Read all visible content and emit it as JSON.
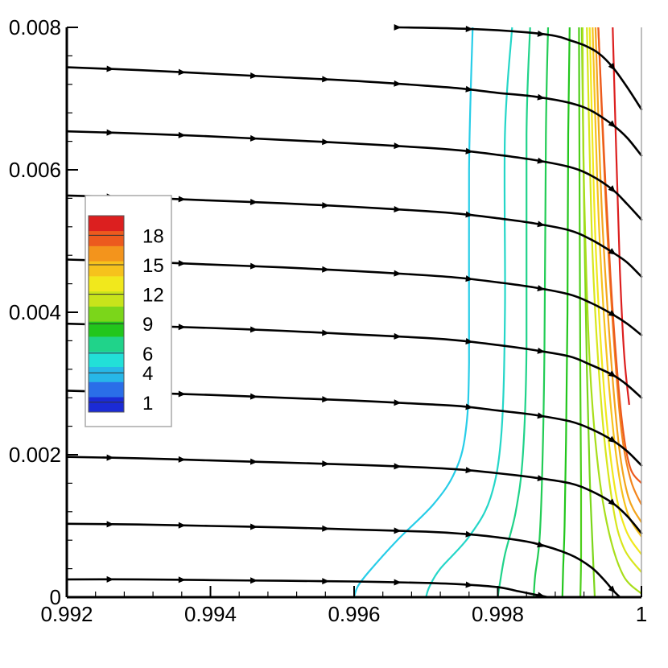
{
  "chart_data": {
    "type": "contour",
    "xlim": [
      0.992,
      1.0
    ],
    "ylim": [
      0,
      0.008
    ],
    "x_ticks": [
      "0.992",
      "0.994",
      "0.996",
      "0.998",
      "1"
    ],
    "y_ticks": [
      "0",
      "0.002",
      "0.004",
      "0.006",
      "0.008"
    ],
    "legend": {
      "placement": "left-middle",
      "labels": [
        "18",
        "15",
        "12",
        "9",
        "6",
        "4",
        "1"
      ],
      "levels": [
        1,
        4,
        6,
        9,
        12,
        15,
        18
      ],
      "range": [
        0,
        20
      ],
      "colors": [
        "#1b2bd6",
        "#2a6ee8",
        "#27b7e8",
        "#22e0d8",
        "#20d38a",
        "#22c61c",
        "#7bd61a",
        "#c8e41b",
        "#f1e81c",
        "#f6c21c",
        "#f3941c",
        "#ec5a1e",
        "#dc1f1f"
      ]
    },
    "streamlines": [
      {
        "x": [
          0.9966,
          0.9972,
          0.9978,
          0.9984,
          0.9988,
          0.999,
          0.9992,
          0.9994,
          0.9996,
          0.9998,
          1.0
        ],
        "y": [
          0.008,
          0.00799,
          0.00797,
          0.00793,
          0.00788,
          0.00782,
          0.00775,
          0.00764,
          0.00744,
          0.00716,
          0.00685
        ]
      },
      {
        "x": [
          0.992,
          0.993,
          0.994,
          0.995,
          0.996,
          0.997,
          0.9975,
          0.998,
          0.9985,
          0.999,
          0.9993,
          0.9996,
          0.9998,
          1.0
        ],
        "y": [
          0.00744,
          0.0074,
          0.00735,
          0.0073,
          0.00725,
          0.00718,
          0.00714,
          0.00708,
          0.00703,
          0.00694,
          0.00683,
          0.00663,
          0.00645,
          0.0062
        ]
      },
      {
        "x": [
          0.992,
          0.993,
          0.994,
          0.995,
          0.996,
          0.997,
          0.9975,
          0.998,
          0.9985,
          0.999,
          0.9993,
          0.9996,
          0.9998,
          1.0
        ],
        "y": [
          0.00654,
          0.00651,
          0.00647,
          0.00642,
          0.00637,
          0.00631,
          0.00627,
          0.00621,
          0.00614,
          0.00604,
          0.00592,
          0.00572,
          0.00552,
          0.0053
        ]
      },
      {
        "x": [
          0.992,
          0.993,
          0.994,
          0.995,
          0.996,
          0.997,
          0.9975,
          0.998,
          0.9985,
          0.999,
          0.9993,
          0.9996,
          0.9998,
          1.0
        ],
        "y": [
          0.00564,
          0.00561,
          0.00557,
          0.00553,
          0.00548,
          0.00542,
          0.00538,
          0.00532,
          0.00525,
          0.00515,
          0.00502,
          0.00484,
          0.0047,
          0.0045
        ]
      },
      {
        "x": [
          0.992,
          0.993,
          0.994,
          0.995,
          0.996,
          0.997,
          0.9975,
          0.998,
          0.9985,
          0.999,
          0.9993,
          0.9996,
          0.9998,
          1.0
        ],
        "y": [
          0.00474,
          0.00471,
          0.00467,
          0.00463,
          0.00458,
          0.00452,
          0.00448,
          0.00442,
          0.00435,
          0.00425,
          0.00413,
          0.00397,
          0.00384,
          0.00368
        ]
      },
      {
        "x": [
          0.992,
          0.993,
          0.994,
          0.995,
          0.996,
          0.997,
          0.9975,
          0.998,
          0.9985,
          0.999,
          0.9993,
          0.9996,
          0.9998,
          1.0
        ],
        "y": [
          0.00384,
          0.00381,
          0.00378,
          0.00374,
          0.00369,
          0.00364,
          0.0036,
          0.00354,
          0.00347,
          0.00338,
          0.00326,
          0.00312,
          0.00298,
          0.0028
        ]
      },
      {
        "x": [
          0.992,
          0.993,
          0.994,
          0.995,
          0.996,
          0.997,
          0.9975,
          0.998,
          0.9985,
          0.999,
          0.9993,
          0.9996,
          0.9998,
          1.0
        ],
        "y": [
          0.0029,
          0.00287,
          0.00284,
          0.0028,
          0.00276,
          0.00271,
          0.00268,
          0.00262,
          0.00256,
          0.00247,
          0.00236,
          0.0022,
          0.00205,
          0.00185
        ]
      },
      {
        "x": [
          0.992,
          0.993,
          0.994,
          0.995,
          0.996,
          0.997,
          0.9975,
          0.998,
          0.9985,
          0.999,
          0.9993,
          0.9996,
          0.9998,
          1.0
        ],
        "y": [
          0.00197,
          0.00195,
          0.00192,
          0.00189,
          0.00186,
          0.00182,
          0.00179,
          0.00174,
          0.00168,
          0.0016,
          0.00149,
          0.00132,
          0.00114,
          0.0009
        ]
      },
      {
        "x": [
          0.992,
          0.993,
          0.994,
          0.995,
          0.996,
          0.997,
          0.9975,
          0.998,
          0.9985,
          0.999,
          0.9993,
          0.9995,
          0.9996,
          0.9997
        ],
        "y": [
          0.00103,
          0.00102,
          0.001,
          0.00098,
          0.00095,
          0.00092,
          0.00089,
          0.00084,
          0.00076,
          0.0006,
          0.00042,
          0.00022,
          0.0001,
          0.0
        ]
      },
      {
        "x": [
          0.992,
          0.993,
          0.994,
          0.995,
          0.996,
          0.997,
          0.9975,
          0.998,
          0.9983,
          0.9985,
          0.9987
        ],
        "y": [
          0.00025,
          0.00025,
          0.00024,
          0.00023,
          0.00022,
          0.0002,
          0.00018,
          0.00014,
          8e-05,
          4e-05,
          0.0
        ]
      }
    ],
    "contours": [
      {
        "level": 5,
        "color": "#27cde8",
        "x": [
          0.996,
          0.99605,
          0.9962,
          0.9966,
          0.9971,
          0.9974,
          0.99755,
          0.9976,
          0.9976,
          0.99765
        ],
        "y": [
          0.0,
          0.00015,
          0.00035,
          0.0008,
          0.0013,
          0.00175,
          0.0023,
          0.0033,
          0.006,
          0.008
        ]
      },
      {
        "level": 6,
        "color": "#25d6c8",
        "x": [
          0.997,
          0.99705,
          0.9972,
          0.9976,
          0.9979,
          0.99805,
          0.9981,
          0.9981,
          0.9982
        ],
        "y": [
          0.0,
          0.00015,
          0.0004,
          0.00085,
          0.0014,
          0.0023,
          0.004,
          0.0065,
          0.008
        ]
      },
      {
        "level": 7,
        "color": "#20d38a",
        "x": [
          0.998,
          0.99803,
          0.9981,
          0.99825,
          0.99835,
          0.9984,
          0.9984,
          0.99845
        ],
        "y": [
          0.0,
          0.0002,
          0.0006,
          0.0012,
          0.002,
          0.0035,
          0.0065,
          0.008
        ]
      },
      {
        "level": 8,
        "color": "#22cc55",
        "x": [
          0.9985,
          0.99852,
          0.99858,
          0.99862,
          0.99865,
          0.99867,
          0.9987
        ],
        "y": [
          0.0,
          0.0003,
          0.0008,
          0.0018,
          0.0035,
          0.0065,
          0.008
        ]
      },
      {
        "level": 9,
        "color": "#22c61c",
        "x": [
          0.9989,
          0.99891,
          0.99893,
          0.99895,
          0.99897,
          0.99898,
          0.999
        ],
        "y": [
          0.0,
          0.0004,
          0.001,
          0.0022,
          0.004,
          0.0065,
          0.008
        ]
      },
      {
        "level": 10,
        "color": "#4dce1a",
        "x": [
          0.99915,
          0.99916,
          0.99916,
          0.99915,
          0.99914,
          0.99913
        ],
        "y": [
          0.0,
          0.0006,
          0.0015,
          0.003,
          0.0055,
          0.008
        ]
      },
      {
        "level": 11,
        "color": "#7bd61a",
        "x": [
          0.99935,
          0.99932,
          0.99928,
          0.99924,
          0.9992,
          0.99917
        ],
        "y": [
          0.0,
          0.0007,
          0.0017,
          0.0032,
          0.0056,
          0.008
        ]
      },
      {
        "level": 12,
        "color": "#a8de1b",
        "x": [
          1.0,
          0.99975,
          0.99955,
          0.9994,
          0.99928,
          0.9992,
          0.99918
        ],
        "y": [
          5e-05,
          0.0003,
          0.0009,
          0.0018,
          0.0033,
          0.0058,
          0.008
        ]
      },
      {
        "level": 13,
        "color": "#d8e61c",
        "x": [
          1.0,
          0.99975,
          0.9996,
          0.99945,
          0.99932,
          0.99924
        ],
        "y": [
          0.00035,
          0.0007,
          0.0013,
          0.0026,
          0.0048,
          0.008
        ]
      },
      {
        "level": 14,
        "color": "#f1e81c",
        "x": [
          1.0,
          0.99978,
          0.99962,
          0.99948,
          0.99936,
          0.99928
        ],
        "y": [
          0.0006,
          0.00095,
          0.0016,
          0.0029,
          0.005,
          0.008
        ]
      },
      {
        "level": 15,
        "color": "#f6c21c",
        "x": [
          1.0,
          0.9998,
          0.99966,
          0.99953,
          0.99941,
          0.99932
        ],
        "y": [
          0.00085,
          0.0012,
          0.0019,
          0.0032,
          0.0052,
          0.008
        ]
      },
      {
        "level": 16,
        "color": "#f3a51c",
        "x": [
          1.0,
          0.99982,
          0.99969,
          0.99957,
          0.99945,
          0.99936
        ],
        "y": [
          0.00105,
          0.0014,
          0.0021,
          0.00345,
          0.0054,
          0.008
        ]
      },
      {
        "level": 17,
        "color": "#f3841c",
        "x": [
          1.0,
          0.99985,
          0.99972,
          0.99961,
          0.9995,
          0.9994
        ],
        "y": [
          0.0013,
          0.00165,
          0.00235,
          0.0037,
          0.0056,
          0.008
        ]
      },
      {
        "level": 18,
        "color": "#ec5a1e",
        "x": [
          1.0,
          0.99985,
          0.99975,
          0.99966,
          0.99957,
          0.99948,
          0.9994
        ],
        "y": [
          0.0016,
          0.0018,
          0.0023,
          0.0032,
          0.0045,
          0.0062,
          0.008
        ]
      },
      {
        "level": 19,
        "color": "#dc1f1f",
        "x": [
          0.9996,
          0.99965,
          0.9997,
          0.99976,
          0.99983
        ],
        "y": [
          0.008,
          0.0062,
          0.0046,
          0.0034,
          0.0027
        ]
      }
    ]
  }
}
